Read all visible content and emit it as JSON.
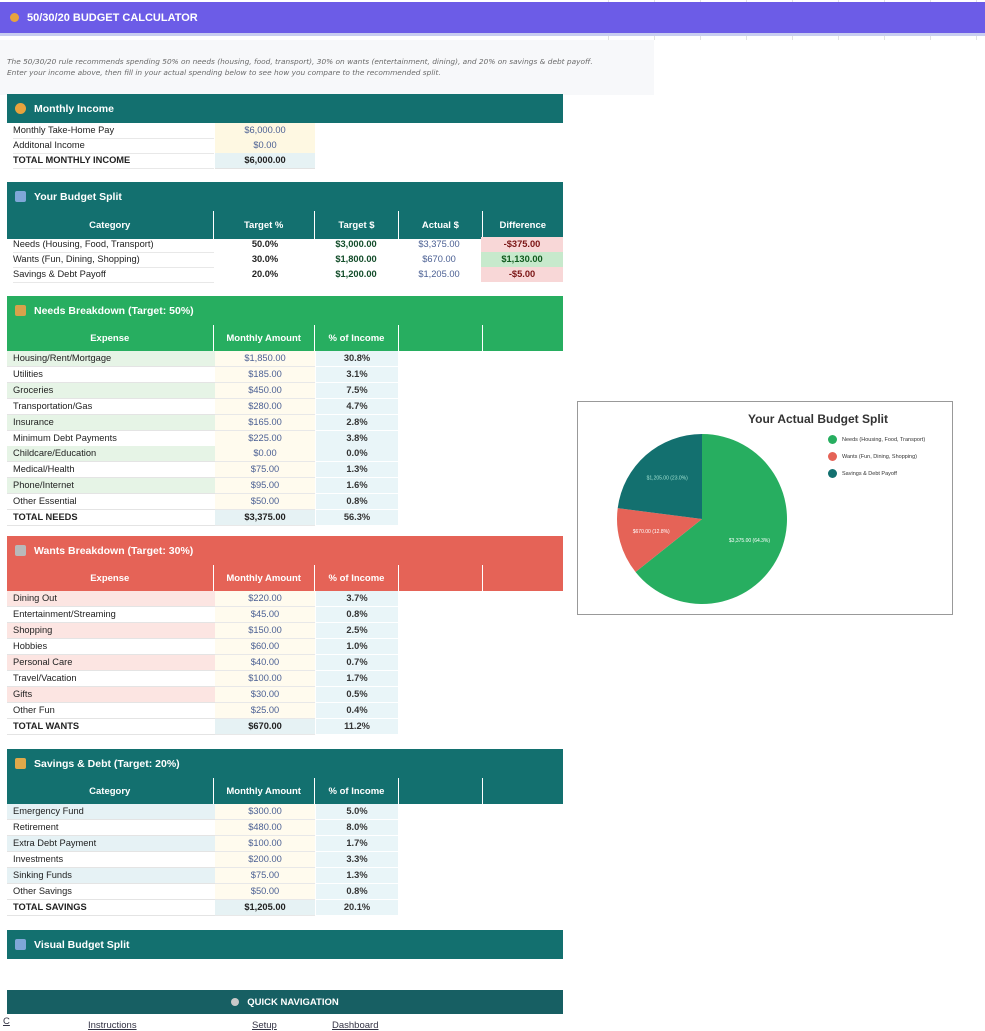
{
  "title": "50/30/20 BUDGET CALCULATOR",
  "title_icon": "moneybag-icon",
  "description": [
    "The 50/30/20 rule recommends spending 50% on needs (housing, food, transport), 30% on wants (entertainment, dining), and 20% on savings & debt payoff.",
    "Enter your income above, then fill in your actual spending below to see how you compare to the recommended split."
  ],
  "colors": {
    "title": "#6c5ce7",
    "teal": "#13706f",
    "green": "#27ae60",
    "red": "#e56357",
    "needs_slice": "#27ae60",
    "wants_slice": "#e56357",
    "savings_slice": "#13706f"
  },
  "income": {
    "title": "Monthly Income",
    "rows": [
      {
        "label": "Monthly Take-Home Pay",
        "value": "$6,000.00"
      },
      {
        "label": "Additonal Income",
        "value": "$0.00"
      },
      {
        "label": "TOTAL MONTHLY INCOME",
        "value": "$6,000.00"
      }
    ]
  },
  "split": {
    "title": "Your Budget Split",
    "headers": [
      "Category",
      "Target %",
      "Target $",
      "Actual $",
      "Difference"
    ],
    "rows": [
      {
        "category": "Needs (Housing, Food, Transport)",
        "target_pct": "50.0%",
        "target_amt": "$3,000.00",
        "actual": "$3,375.00",
        "diff": "-$375.00"
      },
      {
        "category": "Wants (Fun, Dining, Shopping)",
        "target_pct": "30.0%",
        "target_amt": "$1,800.00",
        "actual": "$670.00",
        "diff": "$1,130.00"
      },
      {
        "category": "Savings & Debt Payoff",
        "target_pct": "20.0%",
        "target_amt": "$1,200.00",
        "actual": "$1,205.00",
        "diff": "-$5.00"
      }
    ]
  },
  "needs": {
    "title": "Needs Breakdown (Target: 50%)",
    "headers": [
      "Expense",
      "Monthly Amount",
      "% of Income"
    ],
    "rows": [
      {
        "label": "Housing/Rent/Mortgage",
        "amount": "$1,850.00",
        "pct": "30.8%"
      },
      {
        "label": "Utilities",
        "amount": "$185.00",
        "pct": "3.1%"
      },
      {
        "label": "Groceries",
        "amount": "$450.00",
        "pct": "7.5%"
      },
      {
        "label": "Transportation/Gas",
        "amount": "$280.00",
        "pct": "4.7%"
      },
      {
        "label": "Insurance",
        "amount": "$165.00",
        "pct": "2.8%"
      },
      {
        "label": "Minimum Debt Payments",
        "amount": "$225.00",
        "pct": "3.8%"
      },
      {
        "label": "Childcare/Education",
        "amount": "$0.00",
        "pct": "0.0%"
      },
      {
        "label": "Medical/Health",
        "amount": "$75.00",
        "pct": "1.3%"
      },
      {
        "label": "Phone/Internet",
        "amount": "$95.00",
        "pct": "1.6%"
      },
      {
        "label": "Other Essential",
        "amount": "$50.00",
        "pct": "0.8%"
      }
    ],
    "total": {
      "label": "TOTAL NEEDS",
      "amount": "$3,375.00",
      "pct": "56.3%"
    }
  },
  "wants": {
    "title": "Wants Breakdown (Target: 30%)",
    "headers": [
      "Expense",
      "Monthly Amount",
      "% of Income"
    ],
    "rows": [
      {
        "label": "Dining Out",
        "amount": "$220.00",
        "pct": "3.7%"
      },
      {
        "label": "Entertainment/Streaming",
        "amount": "$45.00",
        "pct": "0.8%"
      },
      {
        "label": "Shopping",
        "amount": "$150.00",
        "pct": "2.5%"
      },
      {
        "label": "Hobbies",
        "amount": "$60.00",
        "pct": "1.0%"
      },
      {
        "label": "Personal Care",
        "amount": "$40.00",
        "pct": "0.7%"
      },
      {
        "label": "Travel/Vacation",
        "amount": "$100.00",
        "pct": "1.7%"
      },
      {
        "label": "Gifts",
        "amount": "$30.00",
        "pct": "0.5%"
      },
      {
        "label": "Other Fun",
        "amount": "$25.00",
        "pct": "0.4%"
      }
    ],
    "total": {
      "label": "TOTAL WANTS",
      "amount": "$670.00",
      "pct": "11.2%"
    }
  },
  "savings": {
    "title": "Savings & Debt (Target: 20%)",
    "headers": [
      "Category",
      "Monthly Amount",
      "% of Income"
    ],
    "rows": [
      {
        "label": "Emergency Fund",
        "amount": "$300.00",
        "pct": "5.0%"
      },
      {
        "label": "Retirement",
        "amount": "$480.00",
        "pct": "8.0%"
      },
      {
        "label": "Extra Debt Payment",
        "amount": "$100.00",
        "pct": "1.7%"
      },
      {
        "label": "Investments",
        "amount": "$200.00",
        "pct": "3.3%"
      },
      {
        "label": "Sinking Funds",
        "amount": "$75.00",
        "pct": "1.3%"
      },
      {
        "label": "Other Savings",
        "amount": "$50.00",
        "pct": "0.8%"
      }
    ],
    "total": {
      "label": "TOTAL SAVINGS",
      "amount": "$1,205.00",
      "pct": "20.1%"
    }
  },
  "visual_split": {
    "title": "Visual Budget Split"
  },
  "nav": {
    "title": "QUICK NAVIGATION",
    "links": [
      "Instructions",
      "Setup",
      "Dashboard"
    ],
    "corner": "C"
  },
  "chart_data": {
    "type": "pie",
    "title": "Your Actual Budget Split",
    "legend_position": "right",
    "slices": [
      {
        "name": "Needs (Housing, Food, Transport)",
        "value": 3375,
        "label": "$3,375.00 (64.3%)",
        "color": "#27ae60"
      },
      {
        "name": "Wants (Fun, Dining, Shopping)",
        "value": 670,
        "label": "$670.00 (12.8%)",
        "color": "#e56357"
      },
      {
        "name": "Savings & Debt Payoff",
        "value": 1205,
        "label": "$1,205.00 (23.0%)",
        "color": "#13706f"
      }
    ]
  }
}
